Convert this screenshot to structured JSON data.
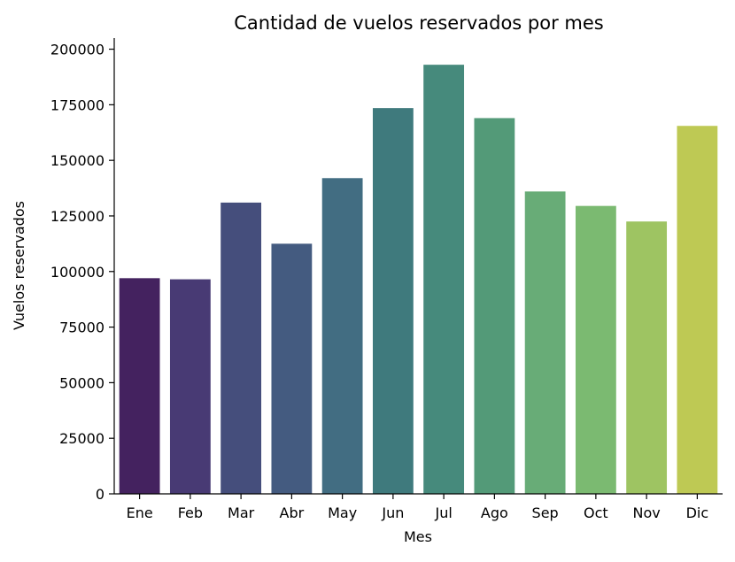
{
  "chart_data": {
    "type": "bar",
    "title": "Cantidad de vuelos reservados por mes",
    "xlabel": "Mes",
    "ylabel": "Vuelos reservados",
    "categories": [
      "Ene",
      "Feb",
      "Mar",
      "Abr",
      "May",
      "Jun",
      "Jul",
      "Ago",
      "Sep",
      "Oct",
      "Nov",
      "Dic"
    ],
    "values": [
      97000,
      96500,
      131000,
      112500,
      142000,
      173500,
      193000,
      169000,
      136000,
      129500,
      122500,
      165500
    ],
    "colors": [
      "#44225f",
      "#483a74",
      "#454e7c",
      "#445b80",
      "#426d82",
      "#3f7a7d",
      "#468a7c",
      "#539a78",
      "#68ac77",
      "#7bba71",
      "#9ec462",
      "#bec954"
    ],
    "ylim": [
      0,
      205000
    ],
    "yticks": [
      0,
      25000,
      50000,
      75000,
      100000,
      125000,
      150000,
      175000,
      200000
    ],
    "ytick_labels": [
      "0",
      "25000",
      "50000",
      "75000",
      "100000",
      "125000",
      "150000",
      "175000",
      "200000"
    ],
    "grid": false,
    "legend": false
  }
}
